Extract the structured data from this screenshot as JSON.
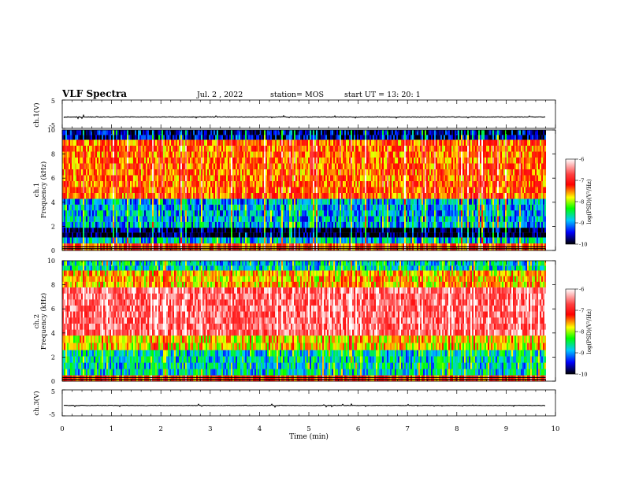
{
  "header": {
    "title": "VLF Spectra",
    "date": "Jul. 2 , 2022",
    "station": "station= MOS",
    "start": "start UT = 13: 20: 1"
  },
  "colors": {
    "spectrogram_scale": [
      "#ffffff",
      "#ff0000",
      "#ffff00",
      "#00ff00",
      "#00c8ff",
      "#0000ff",
      "#000000"
    ],
    "ink": "#000000"
  },
  "chart_data": [
    {
      "type": "line",
      "panel": "waveform-ch1",
      "ylabel": "ch.1(V)",
      "ylim": [
        -5,
        5
      ],
      "yticks": [
        "5",
        "-5"
      ],
      "xlim": [
        0,
        10
      ],
      "series": [
        {
          "values_approx": "flat near -1 V across 0–9.8 min with small spikes"
        }
      ]
    },
    {
      "type": "heatmap",
      "panel": "spectrogram-ch1",
      "ylabel": "ch.1 Frequency (kHz)",
      "ylim": [
        0,
        10
      ],
      "yticks": [
        "0",
        "2",
        "4",
        "6",
        "8",
        "10"
      ],
      "xlim": [
        0,
        10
      ],
      "data_extent_min": 9.8,
      "colorbar": {
        "label": "log(PSD)(V²/Hz)",
        "ticks": [
          "-6",
          "-7",
          "-8",
          "-9",
          "-10"
        ],
        "range": [
          -10,
          -6
        ]
      },
      "bands_khz": [
        {
          "from": 0.0,
          "to": 0.6,
          "level": -7.5
        },
        {
          "from": 0.6,
          "to": 1.1,
          "level": -9.0
        },
        {
          "from": 1.1,
          "to": 1.9,
          "level": -10.0
        },
        {
          "from": 1.9,
          "to": 4.3,
          "level": -9.1
        },
        {
          "from": 4.3,
          "to": 9.2,
          "level": -7.6
        },
        {
          "from": 9.2,
          "to": 10.0,
          "level": -9.7
        }
      ]
    },
    {
      "type": "heatmap",
      "panel": "spectrogram-ch2",
      "ylabel": "ch.2 Frequency (kHz)",
      "ylim": [
        0,
        10
      ],
      "yticks": [
        "0",
        "2",
        "4",
        "6",
        "8",
        "10"
      ],
      "xlim": [
        0,
        10
      ],
      "data_extent_min": 9.8,
      "colorbar": {
        "label": "log(PSD)(V²/Hz)",
        "ticks": [
          "-6",
          "-7",
          "-8",
          "-9",
          "-10"
        ],
        "range": [
          -10,
          -6
        ]
      },
      "bands_khz": [
        {
          "from": 0.0,
          "to": 0.5,
          "level": -7.4
        },
        {
          "from": 0.5,
          "to": 2.6,
          "level": -8.9
        },
        {
          "from": 2.6,
          "to": 3.8,
          "level": -8.0
        },
        {
          "from": 3.8,
          "to": 7.8,
          "level": -6.6
        },
        {
          "from": 7.8,
          "to": 9.2,
          "level": -7.9
        },
        {
          "from": 9.2,
          "to": 10.0,
          "level": -8.9
        }
      ]
    },
    {
      "type": "line",
      "panel": "waveform-ch3",
      "ylabel": "ch.3(V)",
      "ylim": [
        -5,
        5
      ],
      "yticks": [
        "5",
        "-5"
      ],
      "xlim": [
        0,
        10
      ],
      "series": [
        {
          "values_approx": "flat near -1 V across 0–9.8 min with small spikes"
        }
      ]
    }
  ],
  "x_axis": {
    "label": "Time (min)",
    "ticks": [
      "0",
      "1",
      "2",
      "3",
      "4",
      "5",
      "6",
      "7",
      "8",
      "9",
      "10"
    ]
  }
}
